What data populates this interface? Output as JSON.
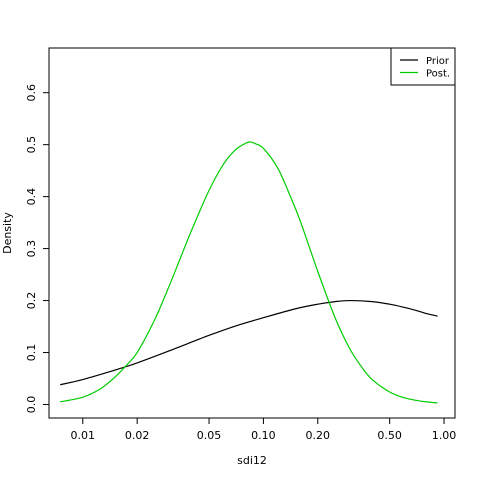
{
  "chart_data": {
    "type": "line",
    "title": "",
    "xlabel": "sdi12",
    "ylabel": "Density",
    "x_scale": "log",
    "xlim": [
      0.0065,
      1.15
    ],
    "ylim": [
      -0.026,
      0.686
    ],
    "x_ticks": [
      0.01,
      0.02,
      0.05,
      0.1,
      0.2,
      0.5,
      1.0
    ],
    "x_tick_labels": [
      "0.01",
      "0.02",
      "0.05",
      "0.10",
      "0.20",
      "0.50",
      "1.00"
    ],
    "y_ticks": [
      0.0,
      0.1,
      0.2,
      0.3,
      0.4,
      0.5,
      0.6
    ],
    "y_tick_labels": [
      "0.0",
      "0.1",
      "0.2",
      "0.3",
      "0.4",
      "0.5",
      "0.6"
    ],
    "grid": false,
    "legend": {
      "position": "top-right",
      "entries": [
        "Prior",
        "Post."
      ]
    },
    "series": [
      {
        "name": "Prior",
        "color": "#000000",
        "x": [
          0.0075,
          0.01,
          0.015,
          0.02,
          0.03,
          0.05,
          0.07,
          0.1,
          0.15,
          0.2,
          0.25,
          0.3,
          0.4,
          0.5,
          0.6,
          0.7,
          0.8,
          0.92
        ],
        "values": [
          0.038,
          0.048,
          0.066,
          0.08,
          0.103,
          0.133,
          0.151,
          0.167,
          0.184,
          0.193,
          0.198,
          0.2,
          0.198,
          0.193,
          0.187,
          0.181,
          0.175,
          0.17
        ]
      },
      {
        "name": "Post.",
        "color": "#00cd00",
        "x": [
          0.0075,
          0.01,
          0.0125,
          0.015,
          0.0175,
          0.02,
          0.025,
          0.03,
          0.035,
          0.04,
          0.05,
          0.06,
          0.07,
          0.08,
          0.085,
          0.09,
          0.1,
          0.12,
          0.14,
          0.16,
          0.2,
          0.25,
          0.3,
          0.35,
          0.4,
          0.5,
          0.6,
          0.7,
          0.8,
          0.92
        ],
        "values": [
          0.005,
          0.014,
          0.03,
          0.052,
          0.076,
          0.1,
          0.163,
          0.227,
          0.285,
          0.335,
          0.412,
          0.462,
          0.49,
          0.503,
          0.505,
          0.502,
          0.493,
          0.455,
          0.403,
          0.353,
          0.256,
          0.166,
          0.108,
          0.072,
          0.048,
          0.024,
          0.013,
          0.008,
          0.005,
          0.003
        ]
      }
    ]
  }
}
